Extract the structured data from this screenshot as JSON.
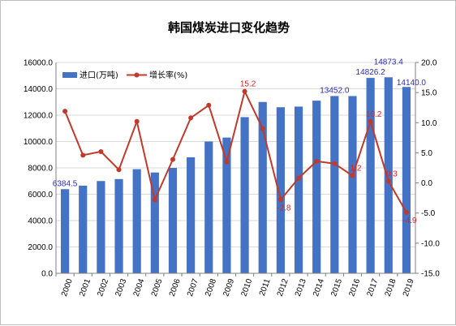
{
  "chart_data": {
    "type": "bar",
    "title": "韩国煤炭进口变化趋势",
    "categories": [
      "2000",
      "2001",
      "2002",
      "2003",
      "2004",
      "2005",
      "2006",
      "2007",
      "2008",
      "2009",
      "2010",
      "2011",
      "2012",
      "2013",
      "2014",
      "2015",
      "2016",
      "2017",
      "2018",
      "2019"
    ],
    "series": [
      {
        "name": "进口(万吨)",
        "type": "bar",
        "axis": "left",
        "color": "#4472c4",
        "values": [
          6384.5,
          6650,
          7000,
          7150,
          7900,
          7650,
          8000,
          8800,
          10000,
          10300,
          11850,
          13000,
          12600,
          12650,
          13100,
          13452.0,
          13450,
          14826.2,
          14873.4,
          14140.0
        ]
      },
      {
        "name": "增长率(%)",
        "type": "line",
        "axis": "right",
        "color": "#c0392b",
        "values": [
          11.9,
          4.6,
          5.2,
          2.2,
          10.2,
          -2.8,
          3.9,
          10.8,
          12.9,
          3.5,
          15.2,
          9.0,
          -2.8,
          0.8,
          3.6,
          3.2,
          1.2,
          10.2,
          0.3,
          -4.9
        ]
      }
    ],
    "data_labels": {
      "bar": [
        {
          "index": 0,
          "text": "6384.5"
        },
        {
          "index": 15,
          "text": "13452.0"
        },
        {
          "index": 17,
          "text": "14826.2"
        },
        {
          "index": 18,
          "text": "14873.4"
        },
        {
          "index": 19,
          "text": "14140.0"
        }
      ],
      "line": [
        {
          "index": 10,
          "text": "15.2"
        },
        {
          "index": 12,
          "text": "-2.8"
        },
        {
          "index": 16,
          "text": "1.2"
        },
        {
          "index": 17,
          "text": "10.2"
        },
        {
          "index": 18,
          "text": "0.3"
        },
        {
          "index": 19,
          "text": "-4.9"
        }
      ]
    },
    "ylim": [
      0,
      16000
    ],
    "yticks": [
      "0.0",
      "2000.0",
      "4000.0",
      "6000.0",
      "8000.0",
      "10000.0",
      "12000.0",
      "14000.0",
      "16000.0"
    ],
    "y2lim": [
      -15,
      20
    ],
    "y2ticks": [
      "-15.0",
      "-10.0",
      "-5.0",
      "0.0",
      "5.0",
      "10.0",
      "15.0",
      "20.0"
    ],
    "xlabel": "",
    "ylabel": "",
    "y2label": "",
    "grid": true,
    "legend": "top-left"
  }
}
